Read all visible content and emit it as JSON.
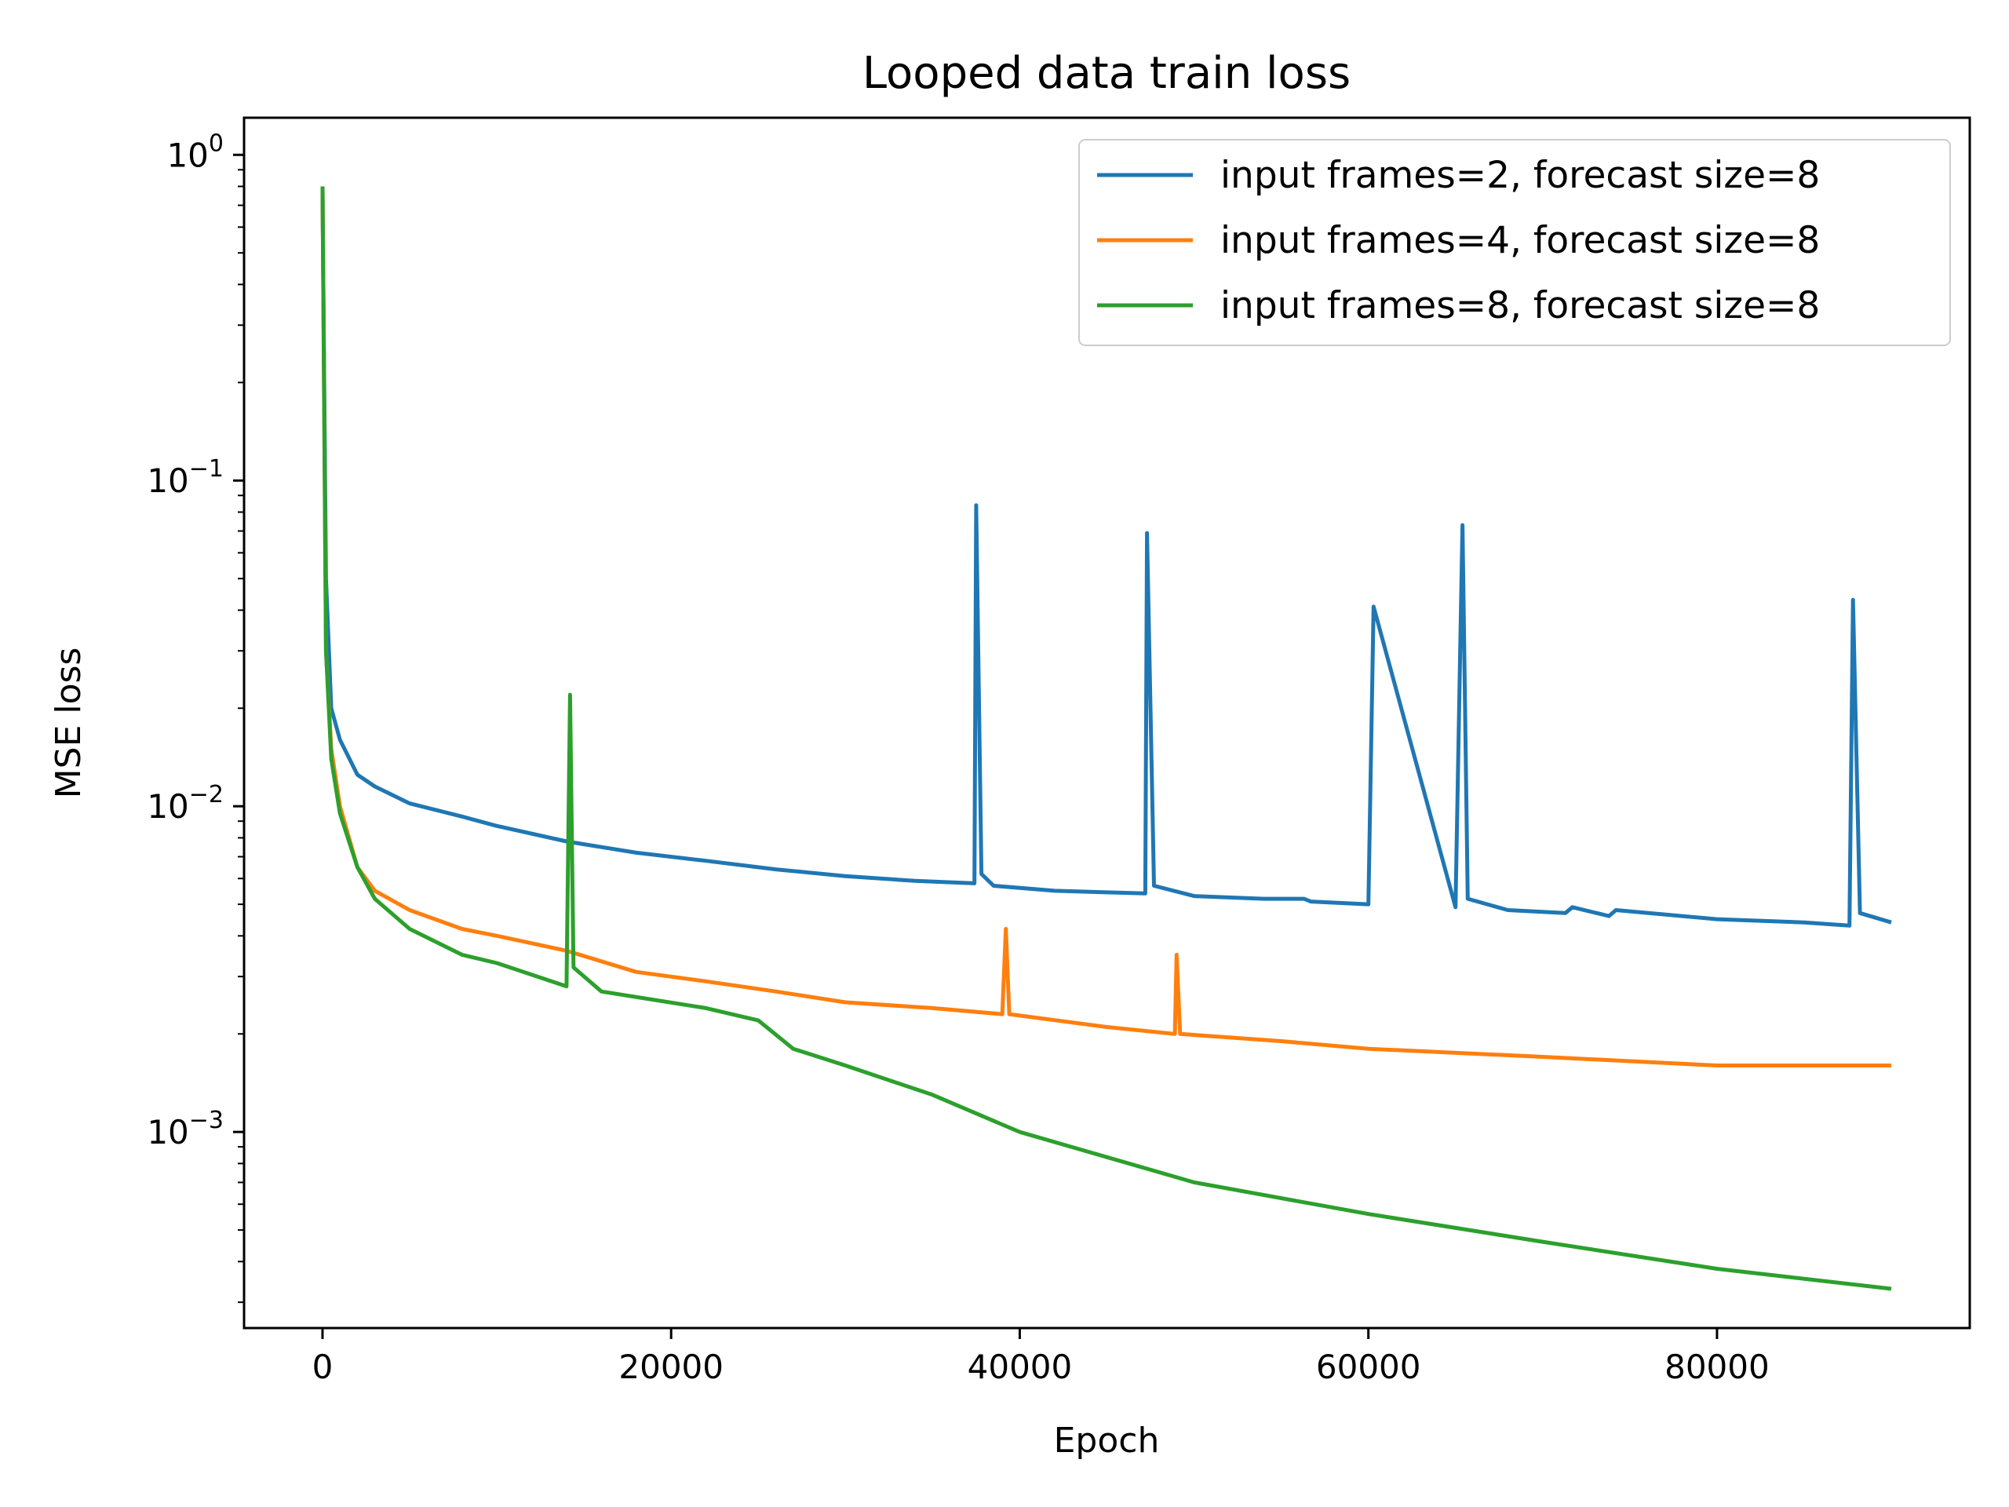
{
  "chart_data": {
    "type": "line",
    "title": "Looped data train loss",
    "xlabel": "Epoch",
    "ylabel": "MSE loss",
    "yscale": "log",
    "xlim": [
      -4500,
      94500
    ],
    "ylim": [
      0.00025,
      1.3
    ],
    "x_ticks": [
      {
        "value": 0,
        "label": "0"
      },
      {
        "value": 20000,
        "label": "20000"
      },
      {
        "value": 40000,
        "label": "40000"
      },
      {
        "value": 60000,
        "label": "60000"
      },
      {
        "value": 80000,
        "label": "80000"
      }
    ],
    "y_ticks": [
      {
        "value": 1,
        "base": "10",
        "exp": "0"
      },
      {
        "value": 0.1,
        "base": "10",
        "exp": "−1"
      },
      {
        "value": 0.01,
        "base": "10",
        "exp": "−2"
      },
      {
        "value": 0.001,
        "base": "10",
        "exp": "−3"
      }
    ],
    "grid": false,
    "legend_position": "top-right",
    "series": [
      {
        "name": "input frames=2, forecast size=8",
        "color": "#1f77b4",
        "x": [
          0,
          200,
          500,
          1000,
          2000,
          3000,
          5000,
          8000,
          10000,
          14000,
          18000,
          22000,
          26000,
          30000,
          34000,
          37400,
          37500,
          37800,
          38500,
          42000,
          47200,
          47300,
          47700,
          50000,
          54000,
          56300,
          56700,
          60000,
          60300,
          65000,
          65400,
          65700,
          68000,
          71300,
          71700,
          73800,
          74200,
          80000,
          85000,
          87600,
          87800,
          88200,
          90000
        ],
        "y": [
          0.75,
          0.05,
          0.02,
          0.016,
          0.0125,
          0.0115,
          0.0102,
          0.0093,
          0.0087,
          0.0078,
          0.0072,
          0.0068,
          0.0064,
          0.0061,
          0.0059,
          0.0058,
          0.084,
          0.0062,
          0.0057,
          0.0055,
          0.0054,
          0.069,
          0.0057,
          0.0053,
          0.0052,
          0.0052,
          0.0051,
          0.005,
          0.041,
          0.0049,
          0.073,
          0.0052,
          0.0048,
          0.0047,
          0.0049,
          0.0046,
          0.0048,
          0.0045,
          0.0044,
          0.0043,
          0.043,
          0.0047,
          0.0044
        ]
      },
      {
        "name": "input frames=4, forecast size=8",
        "color": "#ff7f0e",
        "x": [
          0,
          200,
          500,
          1000,
          2000,
          3000,
          5000,
          8000,
          10000,
          14000,
          18000,
          22000,
          26000,
          30000,
          35000,
          39000,
          39200,
          39400,
          45000,
          48900,
          49000,
          49200,
          55000,
          60000,
          70000,
          80000,
          90000
        ],
        "y": [
          0.8,
          0.03,
          0.015,
          0.01,
          0.0065,
          0.0055,
          0.0048,
          0.0042,
          0.004,
          0.0036,
          0.0031,
          0.0029,
          0.0027,
          0.0025,
          0.0024,
          0.0023,
          0.0042,
          0.0023,
          0.0021,
          0.002,
          0.0035,
          0.002,
          0.0019,
          0.0018,
          0.0017,
          0.0016,
          0.0016
        ]
      },
      {
        "name": "input frames=8, forecast size=8",
        "color": "#2ca02c",
        "x": [
          0,
          200,
          500,
          1000,
          2000,
          3000,
          5000,
          8000,
          10000,
          14000,
          14200,
          14400,
          16000,
          22000,
          25000,
          27000,
          30000,
          35000,
          40000,
          50000,
          60000,
          70000,
          80000,
          90000
        ],
        "y": [
          0.8,
          0.03,
          0.014,
          0.0095,
          0.0065,
          0.0052,
          0.0042,
          0.0035,
          0.0033,
          0.0028,
          0.022,
          0.0032,
          0.0027,
          0.0024,
          0.0022,
          0.0018,
          0.0016,
          0.0013,
          0.001,
          0.0007,
          0.00056,
          0.00046,
          0.00038,
          0.00033
        ]
      }
    ]
  }
}
